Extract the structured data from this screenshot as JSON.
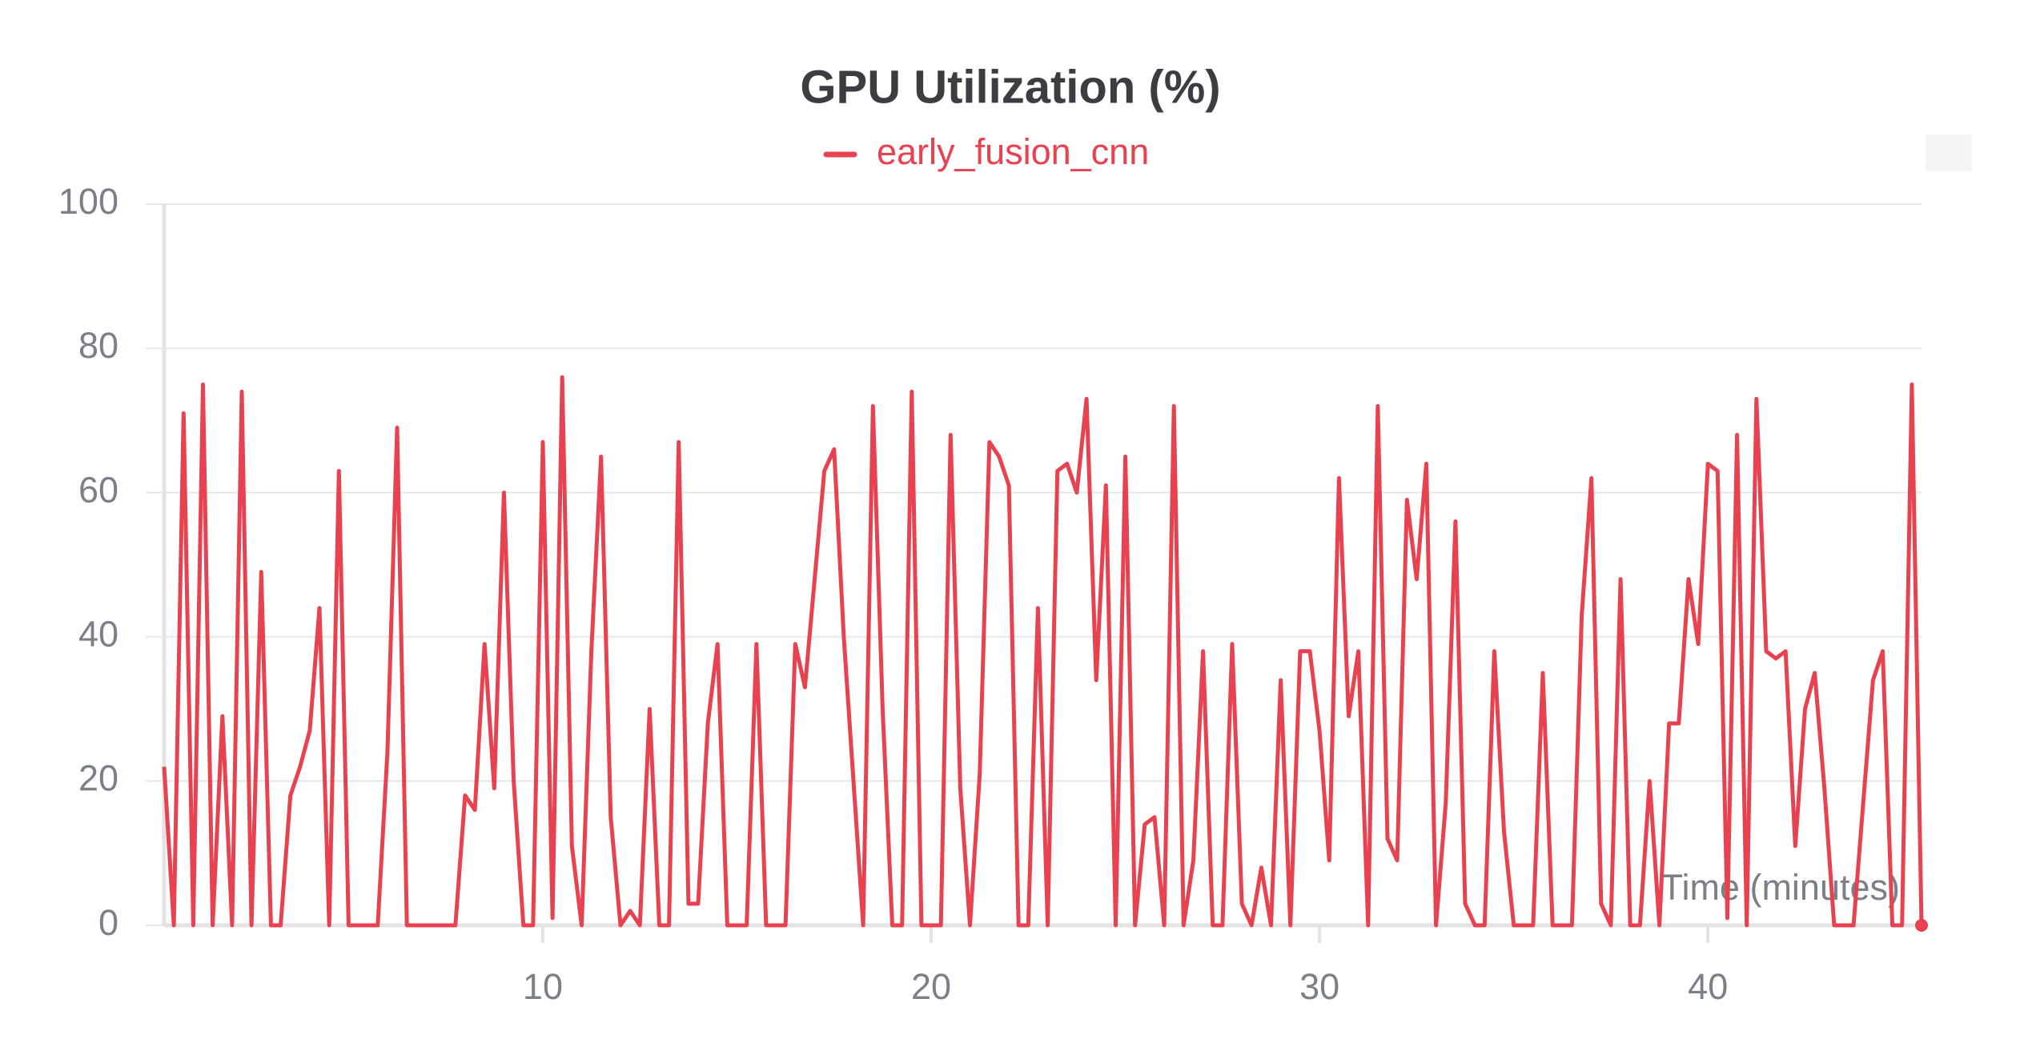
{
  "chart_data": {
    "type": "line",
    "title": "GPU Utilization (%)",
    "x_label": "Time (minutes)",
    "x": [
      0.25,
      0.5,
      0.75,
      1,
      1.25,
      1.5,
      1.75,
      2,
      2.25,
      2.5,
      2.75,
      3,
      3.25,
      3.5,
      3.75,
      4,
      4.25,
      4.5,
      4.75,
      5,
      5.25,
      5.5,
      5.75,
      6,
      6.25,
      6.5,
      6.75,
      7,
      7.25,
      7.5,
      7.75,
      8,
      8.25,
      8.5,
      8.75,
      9,
      9.25,
      9.5,
      9.75,
      10,
      10.25,
      10.5,
      10.75,
      11,
      11.25,
      11.5,
      11.75,
      12,
      12.25,
      12.5,
      12.75,
      13,
      13.25,
      13.5,
      13.75,
      14,
      14.25,
      14.5,
      14.75,
      15,
      15.25,
      15.5,
      15.75,
      16,
      16.25,
      16.5,
      16.75,
      17,
      17.25,
      17.5,
      17.75,
      18,
      18.25,
      18.5,
      18.75,
      19,
      19.25,
      19.5,
      19.75,
      20,
      20.25,
      20.5,
      20.75,
      21,
      21.25,
      21.5,
      21.75,
      22,
      22.25,
      22.5,
      22.75,
      23,
      23.25,
      23.5,
      23.75,
      24,
      24.25,
      24.5,
      24.75,
      25,
      25.25,
      25.5,
      25.75,
      26,
      26.25,
      26.5,
      26.75,
      27,
      27.25,
      27.5,
      27.75,
      28,
      28.25,
      28.5,
      28.75,
      29,
      29.25,
      29.5,
      29.75,
      30,
      30.25,
      30.5,
      30.75,
      31,
      31.25,
      31.5,
      31.75,
      32,
      32.25,
      32.5,
      32.75,
      33,
      33.25,
      33.5,
      33.75,
      34,
      34.25,
      34.5,
      34.75,
      35,
      35.25,
      35.5,
      35.75,
      36,
      36.25,
      36.5,
      36.75,
      37,
      37.25,
      37.5,
      37.75,
      38,
      38.25,
      38.5,
      38.75,
      39,
      39.25,
      39.5,
      39.75,
      40,
      40.25,
      40.5,
      40.75,
      41,
      41.25,
      41.5,
      41.75,
      42,
      42.25,
      42.5,
      42.75,
      43,
      43.25,
      43.5,
      43.75,
      44,
      44.25,
      44.5,
      44.75,
      45,
      45.25,
      45.5
    ],
    "series": [
      {
        "name": "early_fusion_cnn",
        "color": "#e8414f",
        "values": [
          22,
          0,
          71,
          0,
          75,
          0,
          29,
          0,
          74,
          0,
          49,
          0,
          0,
          18,
          22,
          27,
          44,
          0,
          63,
          0,
          0,
          0,
          0,
          24,
          69,
          0,
          0,
          0,
          0,
          0,
          0,
          18,
          16,
          39,
          19,
          60,
          20,
          0,
          0,
          67,
          1,
          76,
          11,
          0,
          38,
          65,
          15,
          0,
          2,
          0,
          30,
          0,
          0,
          67,
          3,
          3,
          28,
          39,
          0,
          0,
          0,
          39,
          0,
          0,
          0,
          39,
          33,
          48,
          63,
          66,
          40,
          20,
          0,
          72,
          30,
          0,
          0,
          74,
          0,
          0,
          0,
          68,
          19,
          0,
          21,
          67,
          65,
          61,
          0,
          0,
          44,
          0,
          63,
          64,
          60,
          73,
          34,
          61,
          0,
          65,
          0,
          14,
          15,
          0,
          72,
          0,
          9,
          38,
          0,
          0,
          39,
          3,
          0,
          8,
          0,
          34,
          0,
          38,
          38,
          27,
          9,
          62,
          29,
          38,
          0,
          72,
          12,
          9,
          59,
          48,
          64,
          0,
          17,
          56,
          3,
          0,
          0,
          38,
          13,
          0,
          0,
          0,
          35,
          0,
          0,
          0,
          43,
          62,
          3,
          0,
          48,
          0,
          0,
          20,
          0,
          28,
          28,
          48,
          39,
          64,
          63,
          1,
          68,
          0,
          73,
          38,
          37,
          38,
          11,
          30,
          35,
          19,
          0,
          0,
          0,
          17,
          34,
          38,
          0,
          0,
          75,
          0
        ]
      }
    ],
    "xlim": [
      0.25,
      45.5
    ],
    "ylim": [
      0,
      100
    ],
    "xticks": [
      10,
      20,
      30,
      40
    ],
    "yticks": [
      0,
      20,
      40,
      60,
      80,
      100
    ],
    "grid": true
  }
}
